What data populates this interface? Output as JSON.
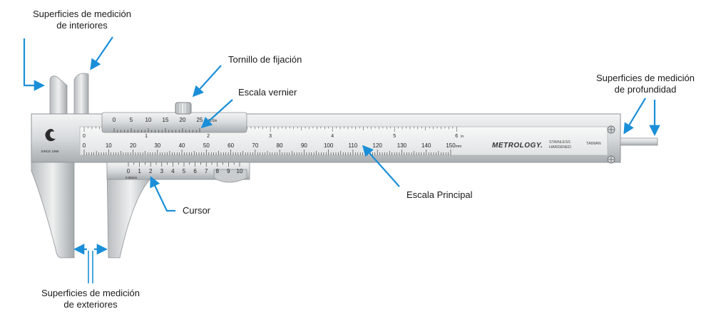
{
  "labels": {
    "inside_jaws_line1": "Superficies de medición",
    "inside_jaws_line2": "de interiores",
    "locking_screw": "Tornillo de fijación",
    "vernier_scale": "Escala vernier",
    "depth_rod_line1": "Superficies de medición",
    "depth_rod_line2": "de profundidad",
    "main_scale": "Escala Principal",
    "cursor": "Cursor",
    "outside_jaws_line1": "Superficies de medición",
    "outside_jaws_line2": "de exteriores"
  },
  "caliper": {
    "brand": "METROLOGY.",
    "finish_line1": "STAINLESS",
    "finish_line2": "HARDENED",
    "origin": "TAIWAN",
    "logo_caption": "SINCE 1965",
    "main_scale_mm_numbers": [
      "0",
      "10",
      "20",
      "30",
      "40",
      "50",
      "60",
      "70",
      "80",
      "90",
      "100",
      "110",
      "120",
      "130",
      "140",
      "150"
    ],
    "main_scale_mm_unit": "mm",
    "main_scale_inch_numbers": [
      "0",
      "1",
      "2",
      "3",
      "4",
      "5",
      "6"
    ],
    "main_scale_inch_unit": "in",
    "vernier_inch_numbers": [
      "0",
      "5",
      "10",
      "15",
      "20",
      "25"
    ],
    "vernier_inch_unit": "0.001in",
    "vernier_mm_numbers": [
      "0",
      "1",
      "2",
      "3",
      "4",
      "5",
      "6",
      "7",
      "8",
      "9",
      "10"
    ],
    "vernier_mm_unit": "0.05mm"
  },
  "colors": {
    "arrow": "#1a8fd8",
    "steel_light": "#eceeee",
    "steel_mid": "#c9cdcf",
    "steel_dark": "#8e9397"
  }
}
